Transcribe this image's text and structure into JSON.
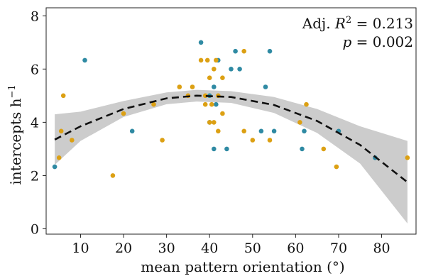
{
  "chart_data": {
    "type": "scatter",
    "xlabel": "mean pattern orientation (°)",
    "ylabel": "intercepts h",
    "ylabel_sup": "−1",
    "xlim": [
      2,
      88
    ],
    "ylim": [
      -0.2,
      8.3
    ],
    "xticks": [
      10,
      20,
      30,
      40,
      50,
      60,
      70,
      80
    ],
    "yticks": [
      0,
      2,
      4,
      6,
      8
    ],
    "grid": false,
    "legend": "none",
    "annotation": {
      "line1_prefix": "Adj. ",
      "line1_var": "R",
      "line1_sup": "2",
      "line1_rest": " = 0.213",
      "line2_var": "p",
      "line2_rest": " = 0.002"
    },
    "colors": {
      "teal": "#2f8aa3",
      "gold": "#dca013",
      "band": "#cccccc",
      "fit": "#111111"
    },
    "fit": {
      "type": "quadratic",
      "x": [
        4,
        10,
        20,
        30,
        37,
        45,
        55,
        65,
        75,
        86
      ],
      "y": [
        3.35,
        3.85,
        4.5,
        4.9,
        5.0,
        4.95,
        4.65,
        4.05,
        3.15,
        1.75
      ],
      "ci_low": [
        2.4,
        3.3,
        4.2,
        4.68,
        4.78,
        4.73,
        4.35,
        3.6,
        2.45,
        0.2
      ],
      "ci_high": [
        4.3,
        4.4,
        4.8,
        5.12,
        5.22,
        5.17,
        4.95,
        4.5,
        3.85,
        3.3
      ]
    },
    "series": [
      {
        "color": "#2f8aa3",
        "points": [
          [
            4,
            2.33
          ],
          [
            11,
            6.33
          ],
          [
            22,
            3.67
          ],
          [
            38,
            7.0
          ],
          [
            40,
            5.0
          ],
          [
            40,
            4.0
          ],
          [
            41,
            3.0
          ],
          [
            41,
            5.33
          ],
          [
            41.5,
            4.67
          ],
          [
            42,
            6.33
          ],
          [
            44,
            3.0
          ],
          [
            45,
            6.0
          ],
          [
            46,
            6.67
          ],
          [
            47,
            6.0
          ],
          [
            52,
            3.67
          ],
          [
            53,
            5.33
          ],
          [
            54,
            6.67
          ],
          [
            55,
            3.67
          ],
          [
            61.5,
            3.0
          ],
          [
            62,
            3.67
          ],
          [
            70,
            3.67
          ],
          [
            78.5,
            2.67
          ]
        ]
      },
      {
        "color": "#dca013",
        "points": [
          [
            5,
            2.67
          ],
          [
            5.5,
            3.67
          ],
          [
            6,
            5.0
          ],
          [
            8,
            3.33
          ],
          [
            17.5,
            2.0
          ],
          [
            20,
            4.33
          ],
          [
            27,
            4.67
          ],
          [
            29,
            3.33
          ],
          [
            33,
            5.33
          ],
          [
            35,
            5.0
          ],
          [
            36,
            5.33
          ],
          [
            38,
            6.33
          ],
          [
            39,
            5.0
          ],
          [
            39,
            4.67
          ],
          [
            39.5,
            6.33
          ],
          [
            40,
            5.67
          ],
          [
            40,
            4.0
          ],
          [
            40.5,
            4.67
          ],
          [
            41,
            6.0
          ],
          [
            41,
            4.0
          ],
          [
            41.5,
            6.33
          ],
          [
            42,
            5.0
          ],
          [
            42,
            3.67
          ],
          [
            43,
            5.67
          ],
          [
            43,
            4.33
          ],
          [
            48,
            3.67
          ],
          [
            48,
            6.67
          ],
          [
            50,
            3.33
          ],
          [
            54,
            3.33
          ],
          [
            61,
            4.0
          ],
          [
            62.5,
            4.67
          ],
          [
            66.5,
            3.0
          ],
          [
            69.5,
            2.33
          ],
          [
            86,
            2.67
          ]
        ]
      }
    ]
  }
}
